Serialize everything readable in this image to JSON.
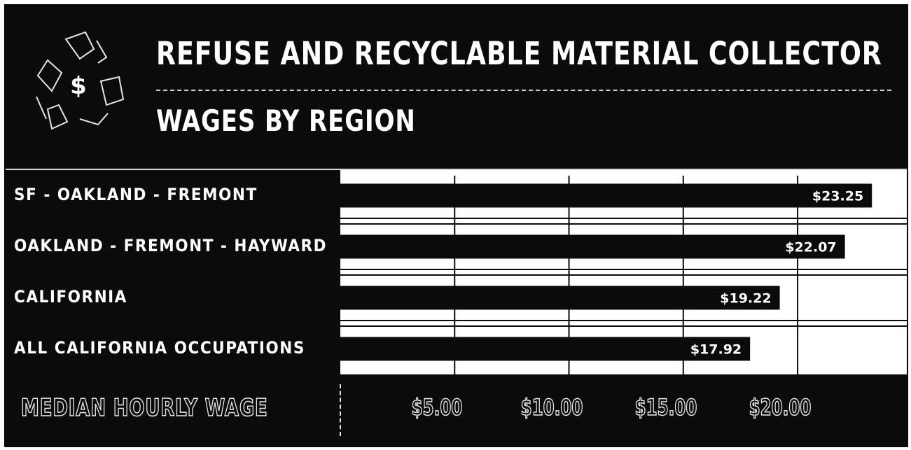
{
  "header": {
    "title_line1": "REFUSE AND RECYCLABLE MATERIAL COLLECTOR",
    "title_line2": "WAGES BY REGION",
    "logo_icon": "recycle-dollar-icon",
    "logo_symbol": "$"
  },
  "colors": {
    "background": "#0b0b0b",
    "plot_background": "#ffffff",
    "bar": "#0b0b0b",
    "text": "#ffffff"
  },
  "chart_data": {
    "type": "bar",
    "orientation": "horizontal",
    "categories": [
      "SF - OAKLAND - FREMONT",
      "OAKLAND - FREMONT - HAYWARD",
      "CALIFORNIA",
      "ALL CALIFORNIA OCCUPATIONS"
    ],
    "values": [
      23.25,
      22.07,
      19.22,
      17.92
    ],
    "value_labels": [
      "$23.25",
      "$22.07",
      "$19.22",
      "$17.92"
    ],
    "xlabel": "MEDIAN HOURLY WAGE",
    "xlim": [
      0,
      24.5
    ],
    "xticks": [
      5,
      10,
      15,
      20
    ],
    "xtick_labels": [
      "$5.00",
      "$10.00",
      "$15.00",
      "$20.00"
    ],
    "grid": true
  }
}
